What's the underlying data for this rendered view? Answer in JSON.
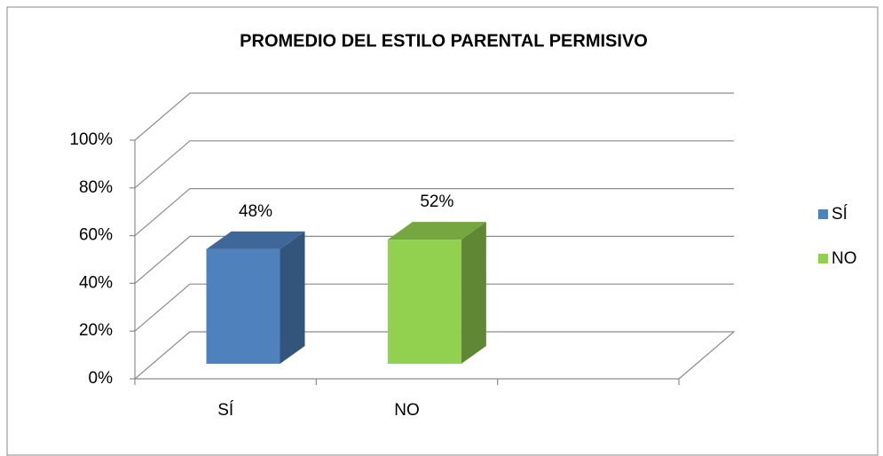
{
  "chart_data": {
    "type": "bar3d",
    "title": "PROMEDIO DEL ESTILO PARENTAL PERMISIVO",
    "categories": [
      "SÍ",
      "NO",
      null
    ],
    "values": [
      48,
      52,
      null
    ],
    "value_labels": [
      "48%",
      "52%",
      null
    ],
    "colors": [
      "#4f81bd",
      "#92d050",
      null
    ],
    "ylim": [
      0,
      100
    ],
    "yticks": [
      {
        "value": 0,
        "label": "0%"
      },
      {
        "value": 20,
        "label": "20%"
      },
      {
        "value": 40,
        "label": "40%"
      },
      {
        "value": 60,
        "label": "60%"
      },
      {
        "value": 80,
        "label": "80%"
      },
      {
        "value": 100,
        "label": "100%"
      }
    ],
    "grid": true,
    "legend": "right"
  }
}
